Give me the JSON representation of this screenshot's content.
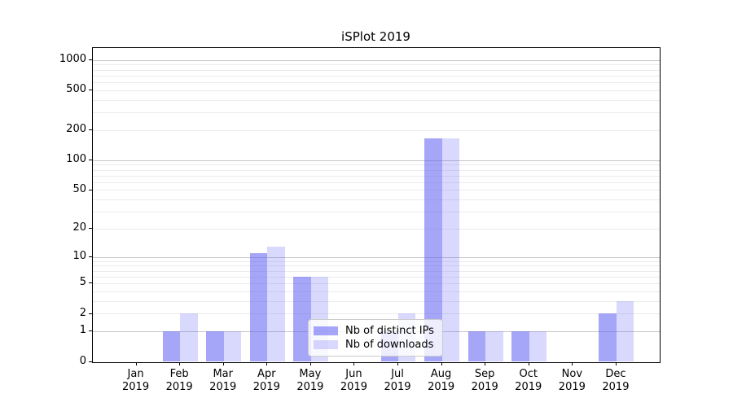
{
  "chart_data": {
    "type": "bar",
    "title": "iSPlot 2019",
    "x_months": [
      "Jan",
      "Feb",
      "Mar",
      "Apr",
      "May",
      "Jun",
      "Jul",
      "Aug",
      "Sep",
      "Oct",
      "Nov",
      "Dec"
    ],
    "x_year": "2019",
    "y_ticks": [
      0,
      1,
      2,
      5,
      10,
      20,
      50,
      100,
      200,
      500,
      1000
    ],
    "y_scale": "log10(1+y)",
    "ylim": [
      0,
      1300
    ],
    "grid": "on",
    "legend_position": "lower-center-inside",
    "series": [
      {
        "name": "Nb of distinct IPs",
        "color": "#6262f5",
        "alpha": 0.57,
        "values": [
          0,
          1,
          1,
          11,
          6,
          0,
          1,
          165,
          1,
          1,
          0,
          2
        ]
      },
      {
        "name": "Nb of downloads",
        "color": "#6262f5",
        "alpha": 0.24,
        "values": [
          0,
          2,
          1,
          13,
          6,
          0,
          2,
          165,
          1,
          1,
          0,
          3
        ]
      }
    ]
  },
  "colors": {
    "minor_grid": "#ebebeb",
    "major_grid": "#c6c6c6",
    "spine": "#000000",
    "legend_border": "#cccccc"
  }
}
